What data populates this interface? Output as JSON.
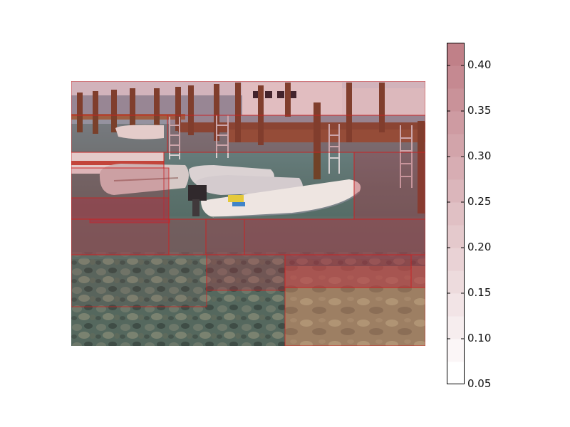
{
  "colorbar": {
    "min": 0.05,
    "max": 0.425,
    "ticks": [
      "0.40",
      "0.35",
      "0.30",
      "0.25",
      "0.20",
      "0.15",
      "0.10",
      "0.05"
    ],
    "tick_values": [
      0.4,
      0.35,
      0.3,
      0.25,
      0.2,
      0.15,
      0.1,
      0.05
    ],
    "levels": 15,
    "color_low": "#ffffff",
    "color_high": "#c08088"
  },
  "overlay": {
    "edge_color": "#cc2222",
    "fill_color": "#b03040"
  },
  "photo": {
    "scene": "marina-dock-with-boats",
    "colors": {
      "sky": "#e8eef4",
      "water_far": "#6f8f8e",
      "water_near": "#5f7d78",
      "rocks": "#4e5a52",
      "sand": "#b0946e",
      "dock": "#8a5a36",
      "boat": "#f2f0ea"
    }
  }
}
